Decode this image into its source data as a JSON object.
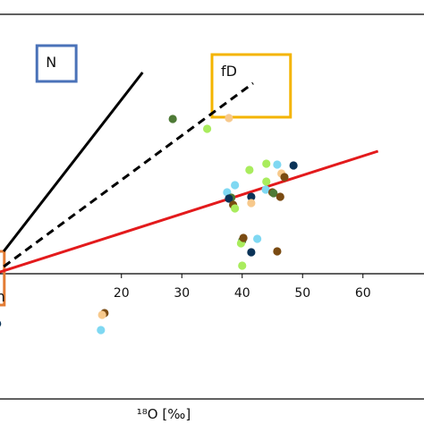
{
  "chart_data": {
    "type": "scatter",
    "title": "",
    "xlabel": "¹⁸O [‰]",
    "ylabel": "",
    "xlim": [
      -1,
      71
    ],
    "ylim": [
      -14,
      29
    ],
    "x_ticks": [
      20,
      30,
      40,
      50,
      60
    ],
    "grid": false,
    "legend": "none",
    "colors": {
      "dark_navy": "#0b3358",
      "light_blue": "#7fd8f2",
      "light_green": "#a9ec5d",
      "dark_green": "#4e7a36",
      "brown": "#7a4b12",
      "peach": "#f7c98c",
      "red_line": "#e31a1c",
      "box_blue": "#4a72b8",
      "box_yellow": "#f4b400",
      "box_orange": "#e37c34",
      "axis": "#000000"
    },
    "lines": [
      {
        "id": "line_N",
        "style": "solid",
        "color": "#000000",
        "points": [
          [
            0.5,
            2.5
          ],
          [
            23.5,
            22.5
          ]
        ]
      },
      {
        "id": "line_fD",
        "style": "dashed",
        "color": "#000000",
        "points": [
          [
            0.5,
            0.8
          ],
          [
            41.8,
            21.3
          ]
        ]
      },
      {
        "id": "line_red",
        "style": "solid",
        "color": "#e31a1c",
        "points": [
          [
            -1,
            0
          ],
          [
            62.5,
            13.7
          ]
        ]
      }
    ],
    "boxes": [
      {
        "label": "N",
        "color": "#4a72b8",
        "x0": 6,
        "x1": 12.5,
        "y0": 21.5,
        "y1": 25.5
      },
      {
        "label": "fD",
        "color": "#f4b400",
        "x0": 35,
        "x1": 48,
        "y0": 17.5,
        "y1": 24.5
      },
      {
        "label": "en",
        "color": "#e37c34",
        "x0": -1,
        "x1": 0.6,
        "y0": -3.5,
        "y1": 2.5
      }
    ],
    "points": [
      {
        "x": 28.5,
        "y": 17.3,
        "color": "dark_green"
      },
      {
        "x": 34.2,
        "y": 16.2,
        "color": "light_green"
      },
      {
        "x": 37.8,
        "y": 17.4,
        "color": "peach"
      },
      {
        "x": 37.5,
        "y": 9.1,
        "color": "light_blue"
      },
      {
        "x": 38.8,
        "y": 9.9,
        "color": "light_blue"
      },
      {
        "x": 38.2,
        "y": 8.5,
        "color": "dark_green"
      },
      {
        "x": 37.8,
        "y": 8.4,
        "color": "dark_navy"
      },
      {
        "x": 38.5,
        "y": 7.7,
        "color": "brown"
      },
      {
        "x": 38.8,
        "y": 7.3,
        "color": "light_green"
      },
      {
        "x": 41.2,
        "y": 11.6,
        "color": "light_green"
      },
      {
        "x": 41.5,
        "y": 8.6,
        "color": "dark_navy"
      },
      {
        "x": 41.5,
        "y": 7.9,
        "color": "peach"
      },
      {
        "x": 40.0,
        "y": 3.7,
        "color": "dark_green"
      },
      {
        "x": 39.8,
        "y": 3.4,
        "color": "light_green"
      },
      {
        "x": 40.2,
        "y": 4.0,
        "color": "brown"
      },
      {
        "x": 41.5,
        "y": 2.4,
        "color": "dark_navy"
      },
      {
        "x": 40.0,
        "y": 0.9,
        "color": "light_green"
      },
      {
        "x": 42.5,
        "y": 3.9,
        "color": "light_blue"
      },
      {
        "x": 44.0,
        "y": 12.3,
        "color": "light_green"
      },
      {
        "x": 45.8,
        "y": 12.2,
        "color": "light_blue"
      },
      {
        "x": 44.0,
        "y": 10.3,
        "color": "light_green"
      },
      {
        "x": 43.9,
        "y": 9.4,
        "color": "light_blue"
      },
      {
        "x": 45.0,
        "y": 9.1,
        "color": "brown"
      },
      {
        "x": 45.2,
        "y": 9.0,
        "color": "dark_green"
      },
      {
        "x": 46.5,
        "y": 11.2,
        "color": "peach"
      },
      {
        "x": 47.0,
        "y": 10.8,
        "color": "brown"
      },
      {
        "x": 46.3,
        "y": 8.6,
        "color": "brown"
      },
      {
        "x": 48.5,
        "y": 12.1,
        "color": "dark_navy"
      },
      {
        "x": 45.8,
        "y": 2.5,
        "color": "brown"
      },
      {
        "x": 17.2,
        "y": -4.4,
        "color": "brown"
      },
      {
        "x": 16.8,
        "y": -4.6,
        "color": "peach"
      },
      {
        "x": 16.6,
        "y": -6.3,
        "color": "light_blue"
      },
      {
        "x": -0.6,
        "y": -5.6,
        "color": "dark_navy"
      }
    ]
  }
}
